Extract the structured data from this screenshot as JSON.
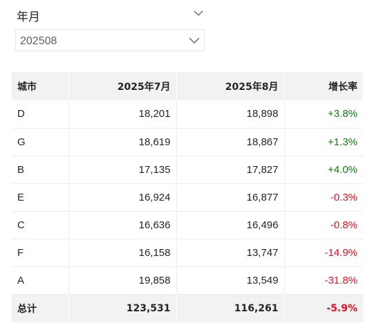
{
  "slicer": {
    "title": "年月",
    "selected_value": "202508",
    "header_icon": "chevron-down-icon",
    "dropdown_icon": "chevron-down-icon"
  },
  "table": {
    "columns": [
      "城市",
      "2025年7月",
      "2025年8月",
      "增长率"
    ],
    "rows": [
      {
        "city": "D",
        "jul": "18,201",
        "aug": "18,898",
        "growth": "+3.8%",
        "trend": "positive"
      },
      {
        "city": "G",
        "jul": "18,619",
        "aug": "18,867",
        "growth": "+1.3%",
        "trend": "positive"
      },
      {
        "city": "B",
        "jul": "17,135",
        "aug": "17,827",
        "growth": "+4.0%",
        "trend": "positive"
      },
      {
        "city": "E",
        "jul": "16,924",
        "aug": "16,877",
        "growth": "-0.3%",
        "trend": "negative"
      },
      {
        "city": "C",
        "jul": "16,636",
        "aug": "16,496",
        "growth": "-0.8%",
        "trend": "negative"
      },
      {
        "city": "F",
        "jul": "16,158",
        "aug": "13,747",
        "growth": "-14.9%",
        "trend": "negative"
      },
      {
        "city": "A",
        "jul": "19,858",
        "aug": "13,549",
        "growth": "-31.8%",
        "trend": "negative"
      }
    ],
    "total": {
      "label": "总计",
      "jul": "123,531",
      "aug": "116,261",
      "growth": "-5.9%",
      "trend": "negative"
    }
  },
  "colors": {
    "positive": "#107c10",
    "negative": "#e81123",
    "header_bg": "#f2f2f2"
  }
}
